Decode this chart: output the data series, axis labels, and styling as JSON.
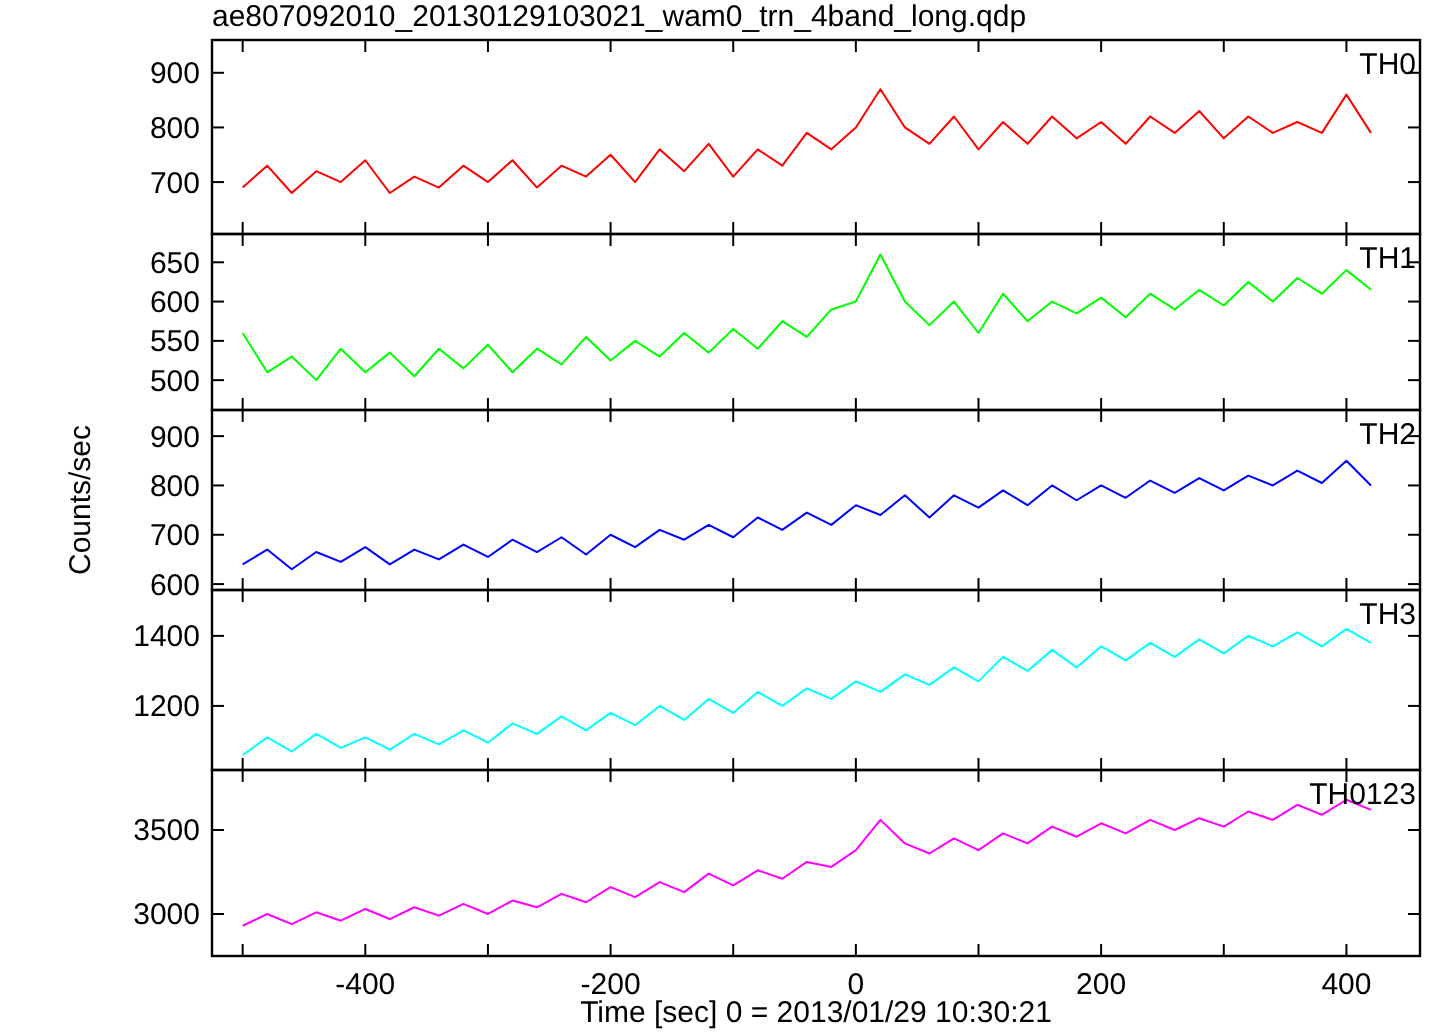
{
  "chart_data": [
    {
      "type": "line",
      "title": "ae807092010_20130129103021_wam0_trn_4band_long.qdp",
      "annotations": [
        "TH0"
      ],
      "xlim": [
        -525,
        460
      ],
      "ylim": [
        605,
        960
      ],
      "yticks": [
        700,
        800,
        900
      ],
      "xticks": [
        {
          "value": -500,
          "label": null
        },
        {
          "value": -400,
          "label": null
        },
        {
          "value": -300,
          "label": null
        },
        {
          "value": -200,
          "label": null
        },
        {
          "value": -100,
          "label": null
        },
        {
          "value": 0,
          "label": null
        },
        {
          "value": 100,
          "label": null
        },
        {
          "value": 200,
          "label": null
        },
        {
          "value": 300,
          "label": null
        },
        {
          "value": 400,
          "label": null
        }
      ],
      "tick_labels": "y",
      "x": [
        -500,
        -480,
        -460,
        -440,
        -420,
        -400,
        -380,
        -360,
        -340,
        -320,
        -300,
        -280,
        -260,
        -240,
        -220,
        -200,
        -180,
        -160,
        -140,
        -120,
        -100,
        -80,
        -60,
        -40,
        -20,
        0,
        20,
        40,
        60,
        80,
        100,
        120,
        140,
        160,
        180,
        200,
        220,
        240,
        260,
        280,
        300,
        320,
        340,
        360,
        380,
        400,
        420
      ],
      "series": [
        {
          "color": "#ff0000",
          "values": [
            690,
            730,
            680,
            720,
            700,
            740,
            680,
            710,
            690,
            730,
            700,
            740,
            690,
            730,
            710,
            750,
            700,
            760,
            720,
            770,
            710,
            760,
            730,
            790,
            760,
            800,
            870,
            800,
            770,
            820,
            760,
            810,
            770,
            820,
            780,
            810,
            770,
            820,
            790,
            830,
            780,
            820,
            790,
            810,
            790,
            860,
            790
          ]
        }
      ]
    },
    {
      "type": "line",
      "annotations": [
        "TH1"
      ],
      "xlim": [
        -525,
        460
      ],
      "ylim": [
        462,
        686
      ],
      "yticks": [
        500,
        550,
        600,
        650
      ],
      "xticks": [
        {
          "value": -500,
          "label": null
        },
        {
          "value": -400,
          "label": null
        },
        {
          "value": -300,
          "label": null
        },
        {
          "value": -200,
          "label": null
        },
        {
          "value": -100,
          "label": null
        },
        {
          "value": 0,
          "label": null
        },
        {
          "value": 100,
          "label": null
        },
        {
          "value": 200,
          "label": null
        },
        {
          "value": 300,
          "label": null
        },
        {
          "value": 400,
          "label": null
        }
      ],
      "tick_labels": "y",
      "x": [
        -500,
        -480,
        -460,
        -440,
        -420,
        -400,
        -380,
        -360,
        -340,
        -320,
        -300,
        -280,
        -260,
        -240,
        -220,
        -200,
        -180,
        -160,
        -140,
        -120,
        -100,
        -80,
        -60,
        -40,
        -20,
        0,
        20,
        40,
        60,
        80,
        100,
        120,
        140,
        160,
        180,
        200,
        220,
        240,
        260,
        280,
        300,
        320,
        340,
        360,
        380,
        400,
        420
      ],
      "series": [
        {
          "color": "#00ff00",
          "values": [
            560,
            510,
            530,
            500,
            540,
            510,
            535,
            505,
            540,
            515,
            545,
            510,
            540,
            520,
            555,
            525,
            550,
            530,
            560,
            535,
            565,
            540,
            575,
            555,
            590,
            600,
            660,
            600,
            570,
            600,
            560,
            610,
            575,
            600,
            585,
            605,
            580,
            610,
            590,
            615,
            595,
            625,
            600,
            630,
            610,
            640,
            615
          ]
        }
      ]
    },
    {
      "type": "line",
      "annotations": [
        "TH2"
      ],
      "ylabel": "Counts/sec",
      "xlim": [
        -525,
        460
      ],
      "ylim": [
        588,
        953
      ],
      "yticks": [
        600,
        700,
        800,
        900
      ],
      "xticks": [
        {
          "value": -500,
          "label": null
        },
        {
          "value": -400,
          "label": null
        },
        {
          "value": -300,
          "label": null
        },
        {
          "value": -200,
          "label": null
        },
        {
          "value": -100,
          "label": null
        },
        {
          "value": 0,
          "label": null
        },
        {
          "value": 100,
          "label": null
        },
        {
          "value": 200,
          "label": null
        },
        {
          "value": 300,
          "label": null
        },
        {
          "value": 400,
          "label": null
        }
      ],
      "tick_labels": "y",
      "x": [
        -500,
        -480,
        -460,
        -440,
        -420,
        -400,
        -380,
        -360,
        -340,
        -320,
        -300,
        -280,
        -260,
        -240,
        -220,
        -200,
        -180,
        -160,
        -140,
        -120,
        -100,
        -80,
        -60,
        -40,
        -20,
        0,
        20,
        40,
        60,
        80,
        100,
        120,
        140,
        160,
        180,
        200,
        220,
        240,
        260,
        280,
        300,
        320,
        340,
        360,
        380,
        400,
        420
      ],
      "series": [
        {
          "color": "#0000ff",
          "values": [
            640,
            670,
            630,
            665,
            645,
            675,
            640,
            670,
            650,
            680,
            655,
            690,
            665,
            695,
            660,
            700,
            675,
            710,
            690,
            720,
            695,
            735,
            710,
            745,
            720,
            760,
            740,
            780,
            735,
            780,
            755,
            790,
            760,
            800,
            770,
            800,
            775,
            810,
            785,
            815,
            790,
            820,
            800,
            830,
            805,
            850,
            800
          ]
        }
      ]
    },
    {
      "type": "line",
      "annotations": [
        "TH3"
      ],
      "xlim": [
        -525,
        460
      ],
      "ylim": [
        1017,
        1531
      ],
      "yticks": [
        1200,
        1400
      ],
      "xticks": [
        {
          "value": -500,
          "label": null
        },
        {
          "value": -400,
          "label": null
        },
        {
          "value": -300,
          "label": null
        },
        {
          "value": -200,
          "label": null
        },
        {
          "value": -100,
          "label": null
        },
        {
          "value": 0,
          "label": null
        },
        {
          "value": 100,
          "label": null
        },
        {
          "value": 200,
          "label": null
        },
        {
          "value": 300,
          "label": null
        },
        {
          "value": 400,
          "label": null
        }
      ],
      "tick_labels": "y",
      "x": [
        -500,
        -480,
        -460,
        -440,
        -420,
        -400,
        -380,
        -360,
        -340,
        -320,
        -300,
        -280,
        -260,
        -240,
        -220,
        -200,
        -180,
        -160,
        -140,
        -120,
        -100,
        -80,
        -60,
        -40,
        -20,
        0,
        20,
        40,
        60,
        80,
        100,
        120,
        140,
        160,
        180,
        200,
        220,
        240,
        260,
        280,
        300,
        320,
        340,
        360,
        380,
        400,
        420
      ],
      "series": [
        {
          "color": "#00ffff",
          "values": [
            1060,
            1110,
            1070,
            1120,
            1080,
            1110,
            1075,
            1120,
            1090,
            1130,
            1095,
            1150,
            1120,
            1170,
            1130,
            1180,
            1145,
            1200,
            1160,
            1220,
            1180,
            1240,
            1200,
            1250,
            1220,
            1270,
            1240,
            1290,
            1260,
            1310,
            1270,
            1340,
            1300,
            1360,
            1310,
            1370,
            1330,
            1380,
            1340,
            1390,
            1350,
            1400,
            1370,
            1410,
            1370,
            1420,
            1380
          ]
        }
      ]
    },
    {
      "type": "line",
      "annotations": [
        "TH0123"
      ],
      "xlabel": "Time [sec] 0 = 2013/01/29 10:30:21",
      "xlim": [
        -525,
        460
      ],
      "ylim": [
        2750,
        3857
      ],
      "yticks": [
        3000,
        3500
      ],
      "xticks": [
        {
          "value": -500,
          "label": null
        },
        -400,
        {
          "value": -300,
          "label": null
        },
        -200,
        {
          "value": -100,
          "label": null
        },
        0,
        {
          "value": 100,
          "label": null
        },
        200,
        {
          "value": 300,
          "label": null
        },
        400
      ],
      "x": [
        -500,
        -480,
        -460,
        -440,
        -420,
        -400,
        -380,
        -360,
        -340,
        -320,
        -300,
        -280,
        -260,
        -240,
        -220,
        -200,
        -180,
        -160,
        -140,
        -120,
        -100,
        -80,
        -60,
        -40,
        -20,
        0,
        20,
        40,
        60,
        80,
        100,
        120,
        140,
        160,
        180,
        200,
        220,
        240,
        260,
        280,
        300,
        320,
        340,
        360,
        380,
        400,
        420
      ],
      "series": [
        {
          "color": "#ff00ff",
          "values": [
            2930,
            3000,
            2940,
            3010,
            2960,
            3030,
            2970,
            3040,
            2990,
            3060,
            3000,
            3080,
            3040,
            3120,
            3070,
            3160,
            3100,
            3190,
            3130,
            3240,
            3170,
            3260,
            3210,
            3310,
            3280,
            3380,
            3560,
            3420,
            3360,
            3450,
            3380,
            3480,
            3420,
            3520,
            3460,
            3540,
            3480,
            3560,
            3500,
            3570,
            3520,
            3610,
            3560,
            3650,
            3590,
            3680,
            3620
          ]
        }
      ]
    }
  ]
}
